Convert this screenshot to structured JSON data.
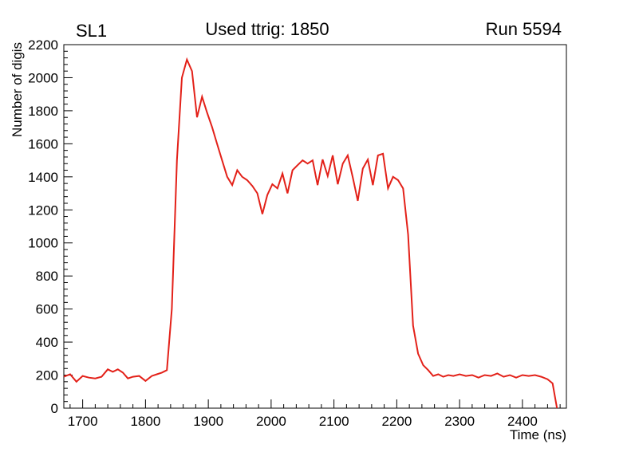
{
  "header": {
    "left": "SL1",
    "center": "Used ttrig: 1850",
    "right": "Run 5594"
  },
  "chart_data": {
    "type": "line",
    "title": "Used ttrig: 1850",
    "xlabel": "Time (ns)",
    "ylabel": "Number of digis",
    "xlim": [
      1670,
      2470
    ],
    "ylim": [
      0,
      2200
    ],
    "xticks": [
      1700,
      1800,
      1900,
      2000,
      2100,
      2200,
      2300,
      2400
    ],
    "yticks": [
      0,
      200,
      400,
      600,
      800,
      1000,
      1200,
      1400,
      1600,
      1800,
      2000,
      2200
    ],
    "x_minor_step": 20,
    "y_minor_step": 40,
    "grid": false,
    "legend": "none",
    "line_color": "#e32119",
    "line_width": 2,
    "x": [
      1670,
      1680,
      1690,
      1700,
      1710,
      1720,
      1730,
      1740,
      1748,
      1756,
      1764,
      1772,
      1780,
      1790,
      1800,
      1810,
      1818,
      1826,
      1834,
      1842,
      1850,
      1858,
      1866,
      1874,
      1882,
      1890,
      1898,
      1906,
      1914,
      1922,
      1930,
      1938,
      1946,
      1954,
      1962,
      1970,
      1978,
      1986,
      1994,
      2002,
      2010,
      2018,
      2026,
      2034,
      2042,
      2050,
      2058,
      2066,
      2074,
      2082,
      2090,
      2098,
      2106,
      2114,
      2122,
      2130,
      2138,
      2146,
      2154,
      2162,
      2170,
      2178,
      2186,
      2194,
      2202,
      2210,
      2218,
      2226,
      2234,
      2242,
      2250,
      2258,
      2266,
      2274,
      2282,
      2290,
      2300,
      2310,
      2320,
      2330,
      2340,
      2350,
      2360,
      2370,
      2380,
      2390,
      2400,
      2410,
      2420,
      2430,
      2440,
      2448,
      2455
    ],
    "y": [
      190,
      205,
      160,
      195,
      185,
      180,
      190,
      235,
      220,
      235,
      215,
      180,
      190,
      195,
      165,
      195,
      205,
      215,
      230,
      600,
      1500,
      2000,
      2110,
      2040,
      1760,
      1885,
      1790,
      1700,
      1600,
      1500,
      1400,
      1350,
      1440,
      1400,
      1380,
      1345,
      1300,
      1175,
      1290,
      1355,
      1330,
      1420,
      1300,
      1440,
      1470,
      1500,
      1480,
      1500,
      1350,
      1505,
      1405,
      1530,
      1355,
      1480,
      1530,
      1395,
      1255,
      1450,
      1505,
      1350,
      1530,
      1540,
      1330,
      1400,
      1380,
      1330,
      1050,
      500,
      330,
      260,
      230,
      195,
      205,
      190,
      200,
      195,
      205,
      195,
      200,
      185,
      200,
      195,
      210,
      190,
      200,
      185,
      200,
      195,
      200,
      190,
      175,
      150,
      0
    ]
  }
}
